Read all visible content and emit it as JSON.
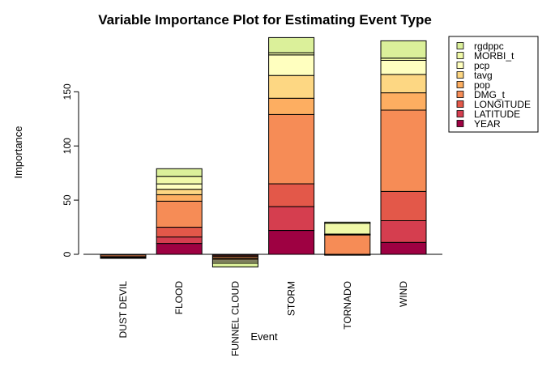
{
  "chart_data": {
    "type": "bar",
    "stacked": true,
    "title": "Variable Importance Plot for Estimating Event Type",
    "xlabel": "Event",
    "ylabel": "Importance",
    "ylim": [
      -12,
      200
    ],
    "yticks": [
      0,
      50,
      100,
      150
    ],
    "categories": [
      "DUST DEVIL",
      "FLOOD",
      "FUNNEL CLOUD",
      "STORM",
      "TORNADO",
      "WIND"
    ],
    "legend": {
      "position": "right"
    },
    "series": [
      {
        "name": "YEAR",
        "color": "#9E0142",
        "values": [
          -0.2,
          10,
          -0.3,
          22,
          -0.2,
          11
        ]
      },
      {
        "name": "LATITUDE",
        "color": "#D53E4F",
        "values": [
          -0.2,
          6,
          -0.5,
          22,
          -0.2,
          20
        ]
      },
      {
        "name": "LONGITUDE",
        "color": "#E35849",
        "values": [
          -0.3,
          9,
          -1,
          21,
          -0.2,
          27
        ]
      },
      {
        "name": "DMG_t",
        "color": "#F68C56",
        "values": [
          -1.5,
          24,
          -1.2,
          64,
          18,
          75
        ]
      },
      {
        "name": "pop",
        "color": "#FDAE61",
        "values": [
          -0.5,
          6,
          -1.2,
          15,
          0.2,
          16
        ]
      },
      {
        "name": "tavg",
        "color": "#FDD783",
        "values": [
          -0.3,
          5,
          -1,
          21,
          0.2,
          17
        ]
      },
      {
        "name": "pcp",
        "color": "#FFFFBF",
        "values": [
          -0.2,
          5,
          -1.5,
          19,
          0.3,
          13
        ]
      },
      {
        "name": "MORBI_t",
        "color": "#F0F9A8",
        "values": [
          -0.1,
          7,
          -1.5,
          2,
          10,
          2
        ]
      },
      {
        "name": "rgdppc",
        "color": "#DBF09A",
        "values": [
          -0.1,
          7,
          -3.5,
          14,
          1,
          16
        ]
      }
    ]
  }
}
